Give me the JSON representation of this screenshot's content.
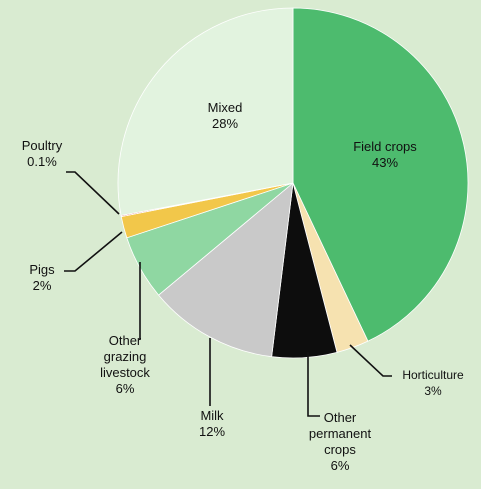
{
  "chart_data": {
    "type": "pie",
    "categories": [
      "Field crops",
      "Horticulture",
      "Other permanent crops",
      "Milk",
      "Other grazing livestock",
      "Pigs",
      "Poultry",
      "Mixed"
    ],
    "values": [
      43,
      3,
      6,
      12,
      6,
      2,
      0.1,
      28
    ],
    "value_labels": [
      "43%",
      "3%",
      "6%",
      "12%",
      "6%",
      "2%",
      "0.1%",
      "28%"
    ],
    "colors": [
      "#4dbb6e",
      "#f6e2b0",
      "#0d0d0d",
      "#c9c9c9",
      "#8fd7a2",
      "#f2c74a",
      "#c8201e",
      "#e2f3df"
    ]
  }
}
